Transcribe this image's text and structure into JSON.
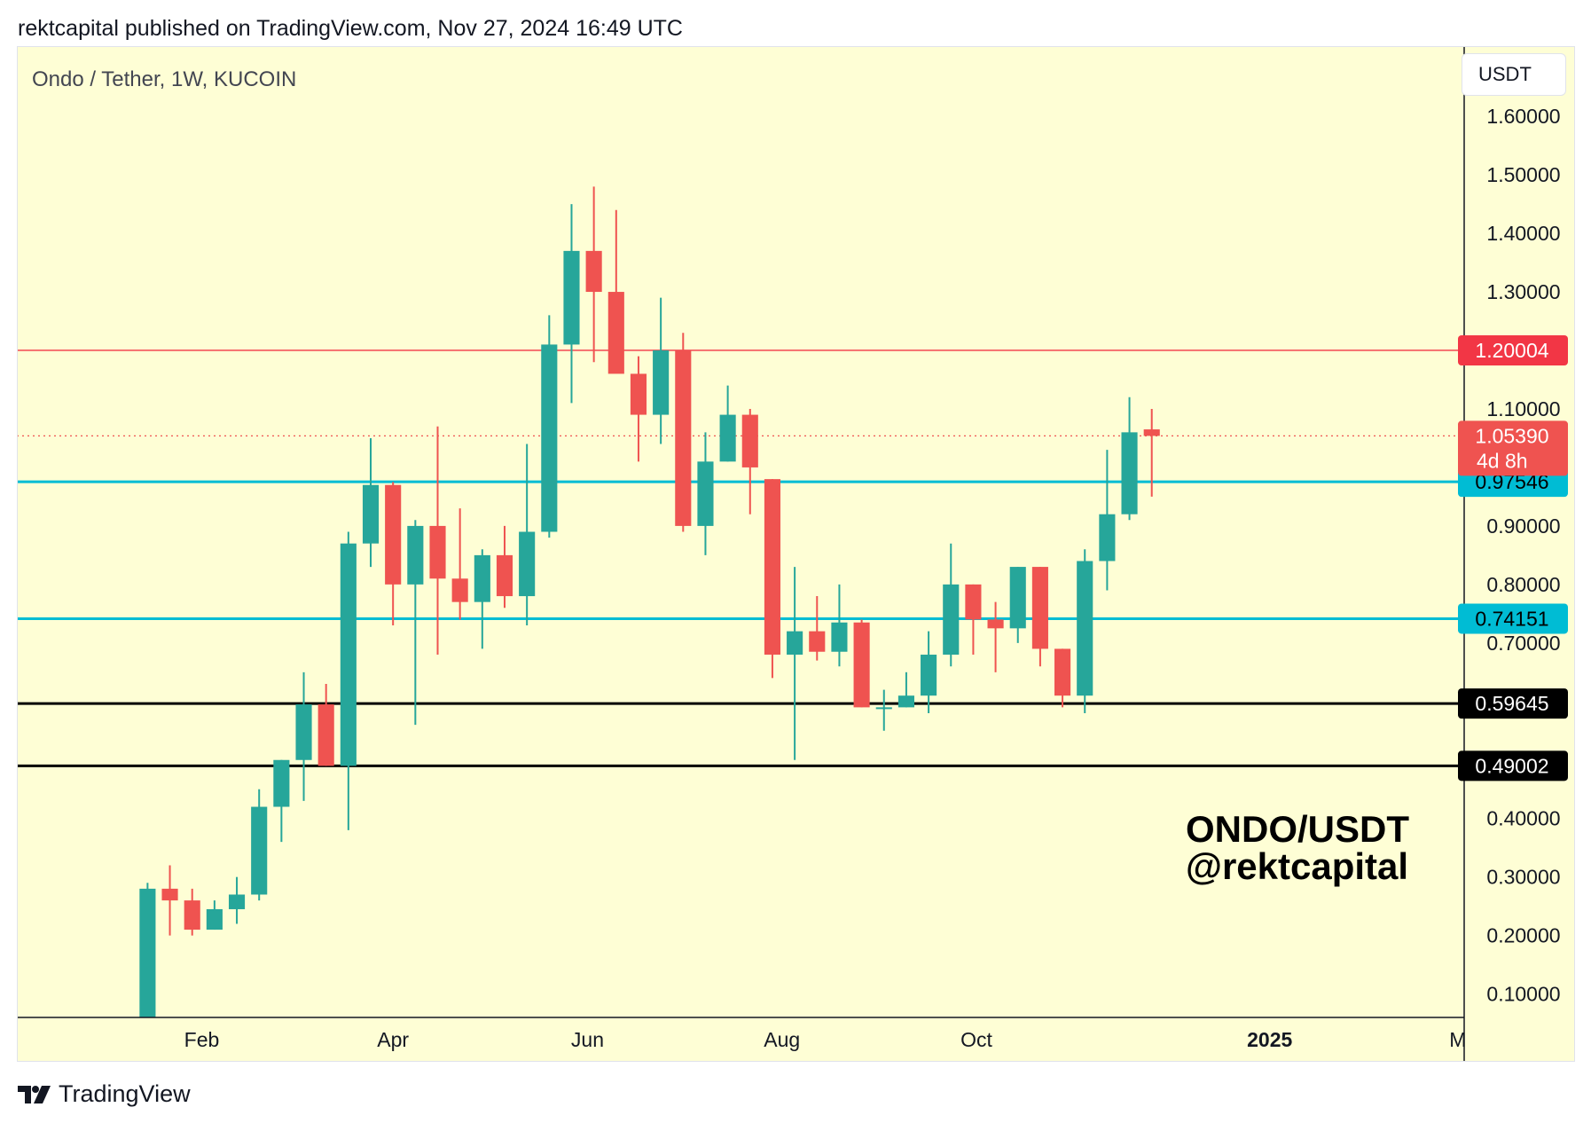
{
  "header": {
    "text": "rektcapital published on TradingView.com, Nov 27, 2024 16:49 UTC"
  },
  "symbol_label": "Ondo / Tether, 1W, KUCOIN",
  "currency": "USDT",
  "watermark": {
    "line1": "ONDO/USDT",
    "line2": "@rektcapital"
  },
  "footer": {
    "brand": "TradingView",
    "brand_icon": "tradingview-logo-icon"
  },
  "colors": {
    "background": "#fefed5",
    "up": "#26a69a",
    "down": "#ef5350",
    "resistance_line": "#f23645",
    "cyan_line": "#00bcd4",
    "black_line": "#000000",
    "last_price_dotted": "#ef5350"
  },
  "chart_data": {
    "type": "candlestick",
    "title": "Ondo / Tether, 1W, KUCOIN",
    "x_tick_labels": [
      "Feb",
      "Apr",
      "Jun",
      "Aug",
      "Oct",
      "2025",
      "M"
    ],
    "x_tick_dates": [
      "2024-02-01",
      "2024-04-01",
      "2024-06-01",
      "2024-08-01",
      "2024-10-01",
      "2025-01-01",
      "2025-03-01"
    ],
    "y_tick_labels": [
      "1.60000",
      "1.50000",
      "1.40000",
      "1.30000",
      "1.10000",
      "0.90000",
      "0.80000",
      "0.70000",
      "0.40000",
      "0.30000",
      "0.20000",
      "0.10000"
    ],
    "y_tick_values": [
      1.6,
      1.5,
      1.4,
      1.3,
      1.1,
      0.9,
      0.8,
      0.7,
      0.4,
      0.3,
      0.2,
      0.1
    ],
    "ylim": [
      0.06,
      1.72
    ],
    "xlim": [
      "2023-12-05",
      "2025-03-03"
    ],
    "candles": [
      {
        "date": "2024-01-15",
        "o": 0.05,
        "h": 0.29,
        "l": 0.05,
        "c": 0.28
      },
      {
        "date": "2024-01-22",
        "o": 0.28,
        "h": 0.32,
        "l": 0.2,
        "c": 0.26
      },
      {
        "date": "2024-01-29",
        "o": 0.26,
        "h": 0.28,
        "l": 0.2,
        "c": 0.21
      },
      {
        "date": "2024-02-05",
        "o": 0.21,
        "h": 0.26,
        "l": 0.21,
        "c": 0.245
      },
      {
        "date": "2024-02-12",
        "o": 0.245,
        "h": 0.3,
        "l": 0.22,
        "c": 0.27
      },
      {
        "date": "2024-02-19",
        "o": 0.27,
        "h": 0.45,
        "l": 0.26,
        "c": 0.42
      },
      {
        "date": "2024-02-26",
        "o": 0.42,
        "h": 0.5,
        "l": 0.36,
        "c": 0.5
      },
      {
        "date": "2024-03-04",
        "o": 0.5,
        "h": 0.65,
        "l": 0.43,
        "c": 0.595
      },
      {
        "date": "2024-03-11",
        "o": 0.595,
        "h": 0.63,
        "l": 0.49,
        "c": 0.49
      },
      {
        "date": "2024-03-18",
        "o": 0.49,
        "h": 0.89,
        "l": 0.38,
        "c": 0.87
      },
      {
        "date": "2024-03-25",
        "o": 0.87,
        "h": 1.05,
        "l": 0.83,
        "c": 0.97
      },
      {
        "date": "2024-04-01",
        "o": 0.97,
        "h": 0.975,
        "l": 0.73,
        "c": 0.8
      },
      {
        "date": "2024-04-08",
        "o": 0.8,
        "h": 0.91,
        "l": 0.56,
        "c": 0.9
      },
      {
        "date": "2024-04-15",
        "o": 0.9,
        "h": 1.07,
        "l": 0.68,
        "c": 0.81
      },
      {
        "date": "2024-04-22",
        "o": 0.81,
        "h": 0.93,
        "l": 0.74,
        "c": 0.77
      },
      {
        "date": "2024-04-29",
        "o": 0.77,
        "h": 0.86,
        "l": 0.69,
        "c": 0.85
      },
      {
        "date": "2024-05-06",
        "o": 0.85,
        "h": 0.9,
        "l": 0.76,
        "c": 0.78
      },
      {
        "date": "2024-05-13",
        "o": 0.78,
        "h": 1.04,
        "l": 0.73,
        "c": 0.89
      },
      {
        "date": "2024-05-20",
        "o": 0.89,
        "h": 1.26,
        "l": 0.88,
        "c": 1.21
      },
      {
        "date": "2024-05-27",
        "o": 1.21,
        "h": 1.45,
        "l": 1.11,
        "c": 1.37
      },
      {
        "date": "2024-06-03",
        "o": 1.37,
        "h": 1.48,
        "l": 1.18,
        "c": 1.3
      },
      {
        "date": "2024-06-10",
        "o": 1.3,
        "h": 1.44,
        "l": 1.17,
        "c": 1.16
      },
      {
        "date": "2024-06-17",
        "o": 1.16,
        "h": 1.19,
        "l": 1.01,
        "c": 1.09
      },
      {
        "date": "2024-06-24",
        "o": 1.09,
        "h": 1.29,
        "l": 1.04,
        "c": 1.2
      },
      {
        "date": "2024-07-01",
        "o": 1.2,
        "h": 1.23,
        "l": 0.89,
        "c": 0.9
      },
      {
        "date": "2024-07-08",
        "o": 0.9,
        "h": 1.06,
        "l": 0.85,
        "c": 1.01
      },
      {
        "date": "2024-07-15",
        "o": 1.01,
        "h": 1.14,
        "l": 1.01,
        "c": 1.09
      },
      {
        "date": "2024-07-22",
        "o": 1.09,
        "h": 1.1,
        "l": 0.92,
        "c": 1.0
      },
      {
        "date": "2024-07-29",
        "o": 0.98,
        "h": 0.98,
        "l": 0.64,
        "c": 0.68
      },
      {
        "date": "2024-08-05",
        "o": 0.68,
        "h": 0.83,
        "l": 0.5,
        "c": 0.72
      },
      {
        "date": "2024-08-12",
        "o": 0.72,
        "h": 0.78,
        "l": 0.67,
        "c": 0.685
      },
      {
        "date": "2024-08-19",
        "o": 0.685,
        "h": 0.8,
        "l": 0.66,
        "c": 0.735
      },
      {
        "date": "2024-08-26",
        "o": 0.735,
        "h": 0.74,
        "l": 0.59,
        "c": 0.59
      },
      {
        "date": "2024-09-02",
        "o": 0.59,
        "h": 0.62,
        "l": 0.55,
        "c": 0.59
      },
      {
        "date": "2024-09-09",
        "o": 0.59,
        "h": 0.65,
        "l": 0.59,
        "c": 0.61
      },
      {
        "date": "2024-09-16",
        "o": 0.61,
        "h": 0.72,
        "l": 0.58,
        "c": 0.68
      },
      {
        "date": "2024-09-23",
        "o": 0.68,
        "h": 0.87,
        "l": 0.66,
        "c": 0.8
      },
      {
        "date": "2024-09-30",
        "o": 0.8,
        "h": 0.8,
        "l": 0.68,
        "c": 0.74
      },
      {
        "date": "2024-10-07",
        "o": 0.74,
        "h": 0.77,
        "l": 0.65,
        "c": 0.725
      },
      {
        "date": "2024-10-14",
        "o": 0.725,
        "h": 0.83,
        "l": 0.7,
        "c": 0.83
      },
      {
        "date": "2024-10-21",
        "o": 0.83,
        "h": 0.83,
        "l": 0.66,
        "c": 0.69
      },
      {
        "date": "2024-10-28",
        "o": 0.69,
        "h": 0.69,
        "l": 0.59,
        "c": 0.61
      },
      {
        "date": "2024-11-04",
        "o": 0.61,
        "h": 0.86,
        "l": 0.58,
        "c": 0.84
      },
      {
        "date": "2024-11-11",
        "o": 0.84,
        "h": 1.03,
        "l": 0.79,
        "c": 0.92
      },
      {
        "date": "2024-11-18",
        "o": 0.92,
        "h": 1.12,
        "l": 0.91,
        "c": 1.06
      },
      {
        "date": "2024-11-25",
        "o": 1.065,
        "h": 1.1,
        "l": 0.95,
        "c": 1.0539
      }
    ],
    "horizontal_lines": [
      {
        "value": 1.20004,
        "label": "1.20004",
        "color": "#f23645",
        "style": "solid",
        "width": 1.4
      },
      {
        "value": 0.97546,
        "label": "0.97546",
        "color": "#00bcd4",
        "style": "solid",
        "width": 3
      },
      {
        "value": 0.74151,
        "label": "0.74151",
        "color": "#00bcd4",
        "style": "solid",
        "width": 3
      },
      {
        "value": 0.59645,
        "label": "0.59645",
        "color": "#000000",
        "style": "solid",
        "width": 3
      },
      {
        "value": 0.49002,
        "label": "0.49002",
        "color": "#000000",
        "style": "solid",
        "width": 3
      }
    ],
    "last_price": {
      "value": 1.0539,
      "label": "1.05390",
      "countdown": "4d 8h",
      "color": "#ef5350"
    }
  }
}
